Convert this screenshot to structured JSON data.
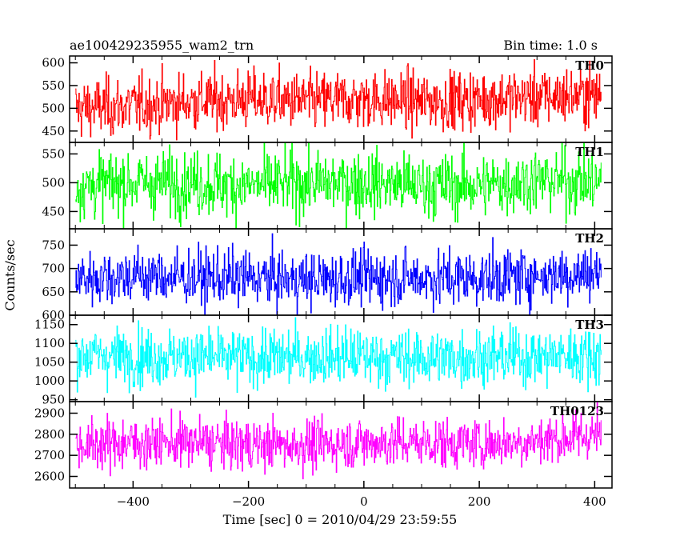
{
  "header": {
    "left": "ae100429235955_wam2_trn",
    "right": "Bin time: 1.0 s"
  },
  "chart_data": {
    "type": "line",
    "title": "ae100429235955_wam2_trn",
    "subtitle": "Bin time: 1.0 s",
    "xlabel": "Time [sec] 0 = 2010/04/29 23:59:55",
    "ylabel": "Counts/sec",
    "xlim": [
      -510,
      430
    ],
    "x_ticks": [
      -400,
      -200,
      0,
      200,
      400
    ],
    "x_tick_labels": [
      "−400",
      "−200",
      "0",
      "200",
      "400"
    ],
    "x_range_data": [
      -500,
      411
    ],
    "bin_time_s": 1.0,
    "grid": false,
    "panels": [
      {
        "name": "TH0",
        "color": "#ff0000",
        "ylim": [
          425,
          615
        ],
        "yticks": [
          450,
          500,
          550,
          600
        ],
        "ytick_labels": [
          "450",
          "500",
          "550",
          "600"
        ],
        "mean_start": 505,
        "mean_end": 530,
        "spread": 32,
        "segments": [
          [
            -500,
            500
          ],
          [
            -400,
            505
          ],
          [
            -300,
            515
          ],
          [
            -200,
            520
          ],
          [
            -100,
            515
          ],
          [
            0,
            520
          ],
          [
            100,
            515
          ],
          [
            200,
            520
          ],
          [
            300,
            525
          ],
          [
            411,
            530
          ]
        ]
      },
      {
        "name": "TH1",
        "color": "#00ff00",
        "ylim": [
          420,
          570
        ],
        "yticks": [
          450,
          500,
          550
        ],
        "ytick_labels": [
          "450",
          "500",
          "550"
        ],
        "mean_start": 495,
        "mean_end": 500,
        "spread": 28,
        "segments": [
          [
            -500,
            495
          ],
          [
            -400,
            500
          ],
          [
            -300,
            500
          ],
          [
            -200,
            495
          ],
          [
            -100,
            500
          ],
          [
            0,
            500
          ],
          [
            100,
            495
          ],
          [
            200,
            495
          ],
          [
            300,
            505
          ],
          [
            411,
            500
          ]
        ]
      },
      {
        "name": "TH2",
        "color": "#0000ff",
        "ylim": [
          600,
          785
        ],
        "yticks": [
          600,
          650,
          700,
          750
        ],
        "ytick_labels": [
          "600",
          "650",
          "700",
          "750"
        ],
        "mean_start": 680,
        "mean_end": 690,
        "spread": 30,
        "segments": [
          [
            -500,
            680
          ],
          [
            -400,
            685
          ],
          [
            -300,
            680
          ],
          [
            -200,
            680
          ],
          [
            -100,
            675
          ],
          [
            0,
            680
          ],
          [
            100,
            680
          ],
          [
            200,
            680
          ],
          [
            300,
            685
          ],
          [
            411,
            690
          ]
        ]
      },
      {
        "name": "TH3",
        "color": "#00ffff",
        "ylim": [
          945,
          1175
        ],
        "yticks": [
          950,
          1000,
          1050,
          1100,
          1150
        ],
        "ytick_labels": [
          "950",
          "1000",
          "1050",
          "1100",
          "1150"
        ],
        "mean_start": 1065,
        "mean_end": 1065,
        "spread": 38,
        "segments": [
          [
            -500,
            1070
          ],
          [
            -400,
            1065
          ],
          [
            -300,
            1065
          ],
          [
            -200,
            1060
          ],
          [
            -100,
            1065
          ],
          [
            0,
            1065
          ],
          [
            100,
            1060
          ],
          [
            200,
            1065
          ],
          [
            300,
            1065
          ],
          [
            411,
            1070
          ]
        ]
      },
      {
        "name": "TH0123",
        "color": "#ff00ff",
        "ylim": [
          2545,
          2955
        ],
        "yticks": [
          2600,
          2700,
          2800,
          2900
        ],
        "ytick_labels": [
          "2600",
          "2700",
          "2800",
          "2900"
        ],
        "mean_start": 2750,
        "mean_end": 2790,
        "spread": 60,
        "segments": [
          [
            -500,
            2750
          ],
          [
            -400,
            2760
          ],
          [
            -300,
            2760
          ],
          [
            -200,
            2750
          ],
          [
            -100,
            2750
          ],
          [
            0,
            2760
          ],
          [
            100,
            2760
          ],
          [
            200,
            2755
          ],
          [
            300,
            2770
          ],
          [
            411,
            2800
          ]
        ]
      }
    ]
  }
}
